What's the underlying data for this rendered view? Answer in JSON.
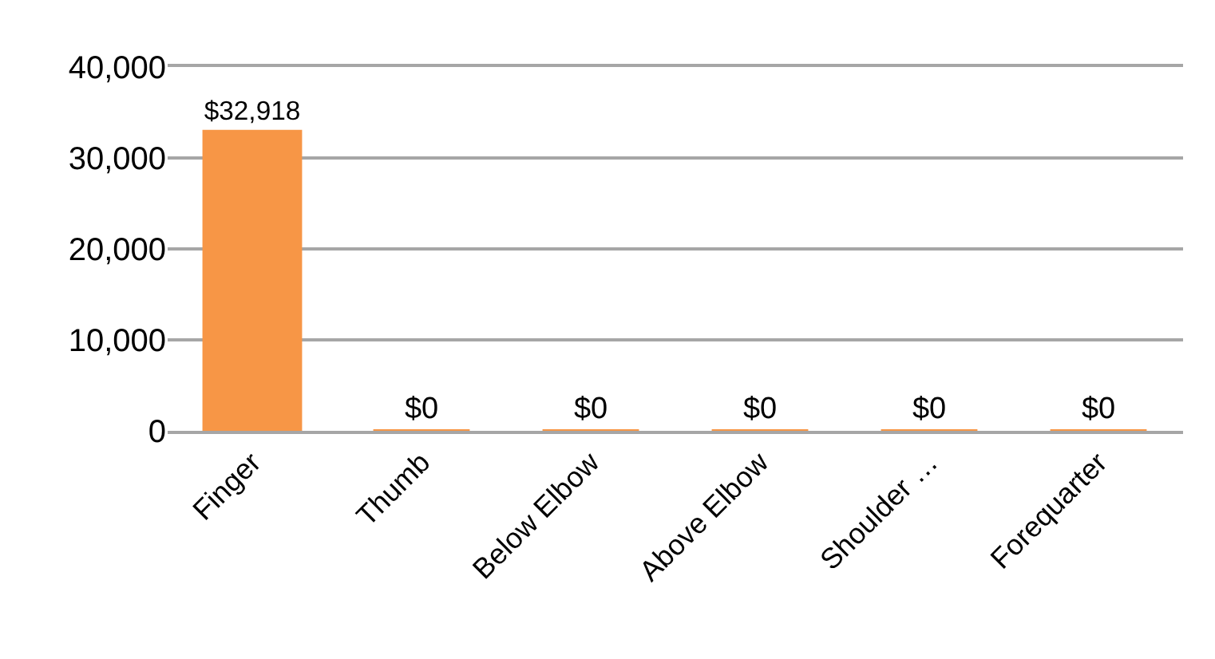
{
  "chart_data": {
    "type": "bar",
    "categories": [
      "Finger",
      "Thumb",
      "Below Elbow",
      "Above Elbow",
      "Shoulder …",
      "Forequarter"
    ],
    "values": [
      32918,
      0,
      0,
      0,
      0,
      0
    ],
    "value_labels": [
      "$32,918",
      "$0",
      "$0",
      "$0",
      "$0",
      "$0"
    ],
    "color": "#f79646",
    "ylim": [
      0,
      40000
    ],
    "yticks": [
      0,
      {
        "value": 10000,
        "label": "10,000"
      },
      {
        "value": 20000,
        "label": "20,000"
      },
      {
        "value": 30000,
        "label": "30,000"
      },
      {
        "value": 40000,
        "label": "40,000"
      }
    ],
    "grid": "y"
  }
}
